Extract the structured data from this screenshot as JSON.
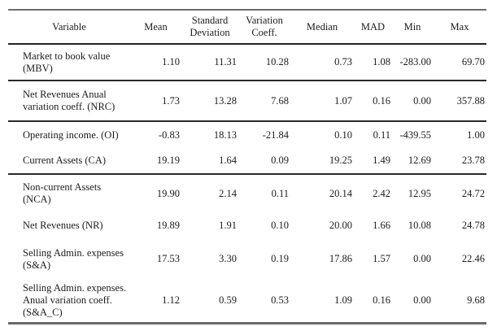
{
  "colors": {
    "background": "#ffffff",
    "text": "#1c1c1c",
    "rule_top": "#6e6e6e",
    "rule_header": "#232323",
    "rule_group": "#2a2a2a",
    "rule_bottom_thick": "#6a6a6a"
  },
  "table": {
    "headers": {
      "variable": "Variable",
      "mean": "Mean",
      "std_line1": "Standard",
      "std_line2": "Deviation",
      "vc_line1": "Variation",
      "vc_line2": "Coeff.",
      "median": "Median",
      "mad": "MAD",
      "min": "Min",
      "max": "Max"
    },
    "rows": [
      {
        "label": [
          "Market to book value",
          "(MBV)"
        ],
        "values": [
          "1.10",
          "11.31",
          "10.28",
          "0.73",
          "1.08",
          "-283.00",
          "69.70"
        ]
      },
      {
        "label": [
          "Net Revenues Anual",
          "variation coeff.  (NRC)"
        ],
        "values": [
          "1.73",
          "13.28",
          "7.68",
          "1.07",
          "0.16",
          "0.00",
          "357.88"
        ]
      },
      {
        "label": [
          "Operating income. (OI)"
        ],
        "values": [
          "-0.83",
          "18.13",
          "-21.84",
          "0.10",
          "0.11",
          "-439.55",
          "1.00"
        ]
      },
      {
        "label": [
          "Current Assets (CA)"
        ],
        "values": [
          "19.19",
          "1.64",
          "0.09",
          "19.25",
          "1.49",
          "12.69",
          "23.78"
        ]
      },
      {
        "label": [
          "Non-current Assets",
          "(NCA)"
        ],
        "values": [
          "19.90",
          "2.14",
          "0.11",
          "20.14",
          "2.42",
          "12.95",
          "24.72"
        ]
      },
      {
        "label": [
          "Net Revenues (NR)"
        ],
        "values": [
          "19.89",
          "1.91",
          "0.10",
          "20.00",
          "1.66",
          "10.08",
          "24.78"
        ]
      },
      {
        "label": [
          "Selling Admin. expenses",
          "(S&A)"
        ],
        "values": [
          "17.53",
          "3.30",
          "0.19",
          "17.86",
          "1.57",
          "0.00",
          "22.46"
        ]
      },
      {
        "label": [
          "Selling Admin. expenses.",
          "Anual variation  coeff.",
          "(S&A_C)"
        ],
        "values": [
          "1.12",
          "0.59",
          "0.53",
          "1.09",
          "0.16",
          "0.00",
          "9.68"
        ]
      }
    ]
  }
}
